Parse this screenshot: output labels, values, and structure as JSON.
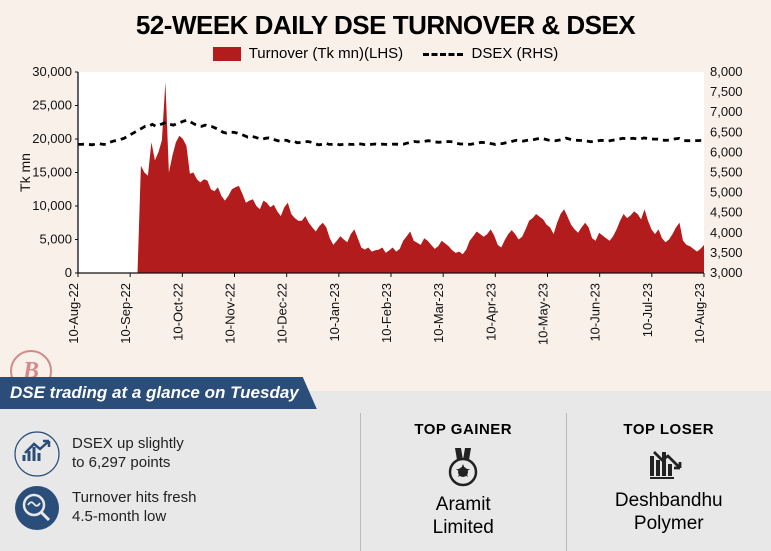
{
  "title": "52-WEEK DAILY DSE TURNOVER & DSEX",
  "legend": {
    "series1": "Turnover (Tk mn)(LHS)",
    "series2": "DSEX (RHS)"
  },
  "chart": {
    "y_left_label": "Tk mn",
    "y_left_ticks": [
      0,
      5000,
      10000,
      15000,
      20000,
      25000,
      30000
    ],
    "y_left_min": 0,
    "y_left_max": 30000,
    "y_right_ticks": [
      3000,
      3500,
      4000,
      4500,
      5000,
      5500,
      6000,
      6500,
      7000,
      7500,
      8000
    ],
    "y_right_min": 3000,
    "y_right_max": 8000,
    "x_ticks": [
      "10-Aug-22",
      "10-Sep-22",
      "10-Oct-22",
      "10-Nov-22",
      "10-Dec-22",
      "10-Jan-23",
      "10-Feb-23",
      "10-Mar-23",
      "10-Apr-23",
      "10-May-23",
      "10-Jun-23",
      "10-Jul-23",
      "10-Aug-23"
    ],
    "turnover_color": "#b31c1c",
    "dsex_color": "#000000",
    "bg_color": "#ffffff",
    "turnover_values": [
      0,
      0,
      0,
      0,
      0,
      0,
      0,
      0,
      0,
      0,
      0,
      0,
      0,
      0,
      0,
      0,
      0,
      0,
      16000,
      15000,
      14500,
      19500,
      16800,
      18000,
      19800,
      28500,
      15000,
      17500,
      19500,
      20500,
      20000,
      19000,
      14800,
      15000,
      14000,
      13500,
      14000,
      13800,
      12500,
      12200,
      12800,
      11500,
      10800,
      11500,
      12500,
      12800,
      13000,
      11800,
      10500,
      10800,
      11000,
      10000,
      9500,
      10800,
      10500,
      9800,
      10200,
      9200,
      8500,
      9800,
      10500,
      8800,
      8200,
      7800,
      7800,
      8500,
      7500,
      6800,
      6200,
      7000,
      7500,
      6800,
      5200,
      4200,
      4800,
      5500,
      5000,
      4600,
      5800,
      6500,
      5200,
      3800,
      3500,
      3800,
      3200,
      3400,
      3500,
      3800,
      3000,
      3400,
      3800,
      3200,
      3600,
      4800,
      5500,
      6200,
      4800,
      4500,
      4200,
      5200,
      4800,
      4200,
      3600,
      4000,
      4800,
      4400,
      4000,
      3400,
      3000,
      3200,
      2800,
      3500,
      4800,
      5500,
      6200,
      5800,
      5400,
      5800,
      6500,
      5600,
      4200,
      3800,
      4900,
      5800,
      6400,
      5800,
      5000,
      5400,
      6500,
      7800,
      8200,
      8800,
      8400,
      8000,
      7200,
      6800,
      5800,
      7500,
      8800,
      9500,
      8400,
      7200,
      6500,
      6000,
      6800,
      7500,
      6800,
      5200,
      4800,
      6000,
      5600,
      5200,
      4800,
      5500,
      6500,
      7800,
      8800,
      8200,
      8600,
      9200,
      8800,
      8000,
      9500,
      7800,
      6500,
      5800,
      6500,
      5200,
      4600,
      5000,
      5800,
      6800,
      7500,
      4800,
      4200,
      4000,
      3600,
      3200,
      3600,
      4200
    ],
    "dsex_values": [
      6200,
      6200,
      6210,
      6200,
      6190,
      6210,
      6220,
      6200,
      6200,
      6250,
      6280,
      6300,
      6320,
      6350,
      6400,
      6450,
      6500,
      6550,
      6600,
      6650,
      6650,
      6700,
      6650,
      6680,
      6720,
      6750,
      6700,
      6680,
      6720,
      6750,
      6780,
      6800,
      6750,
      6700,
      6660,
      6650,
      6680,
      6650,
      6640,
      6600,
      6560,
      6500,
      6480,
      6500,
      6500,
      6480,
      6450,
      6420,
      6380,
      6400,
      6380,
      6350,
      6320,
      6350,
      6360,
      6340,
      6300,
      6280,
      6300,
      6300,
      6260,
      6280,
      6240,
      6250,
      6260,
      6270,
      6250,
      6220,
      6190,
      6200,
      6230,
      6200,
      6200,
      6215,
      6190,
      6200,
      6210,
      6200,
      6200,
      6220,
      6210,
      6195,
      6190,
      6200,
      6210,
      6200,
      6205,
      6200,
      6195,
      6205,
      6205,
      6200,
      6205,
      6230,
      6250,
      6270,
      6260,
      6265,
      6275,
      6290,
      6280,
      6260,
      6250,
      6260,
      6265,
      6270,
      6260,
      6230,
      6210,
      6210,
      6205,
      6200,
      6220,
      6230,
      6250,
      6245,
      6238,
      6215,
      6200,
      6220,
      6220,
      6240,
      6255,
      6280,
      6300,
      6290,
      6280,
      6300,
      6310,
      6320,
      6340,
      6350,
      6330,
      6305,
      6295,
      6290,
      6305,
      6320,
      6355,
      6330,
      6305,
      6300,
      6295,
      6300,
      6280,
      6265,
      6270,
      6290,
      6300,
      6290,
      6280,
      6300,
      6310,
      6330,
      6350,
      6340,
      6345,
      6350,
      6335,
      6330,
      6360,
      6345,
      6335,
      6330,
      6330,
      6305,
      6300,
      6305,
      6322,
      6340,
      6348,
      6300,
      6290,
      6290,
      6292,
      6293,
      6295,
      6297
    ]
  },
  "tab_label": "DSE trading at a glance on Tuesday",
  "stats": [
    {
      "icon": "chart-up",
      "text_l1": "DSEX up slightly",
      "text_l2": "to 6,297 points"
    },
    {
      "icon": "magnify",
      "text_l1": "Turnover hits fresh",
      "text_l2": "4.5-month low"
    }
  ],
  "top_gainer": {
    "label": "TOP GAINER",
    "name_l1": "Aramit",
    "name_l2": "Limited"
  },
  "top_loser": {
    "label": "TOP LOSER",
    "name_l1": "Deshbandhu",
    "name_l2": "Polymer"
  },
  "logo_letter": "B"
}
